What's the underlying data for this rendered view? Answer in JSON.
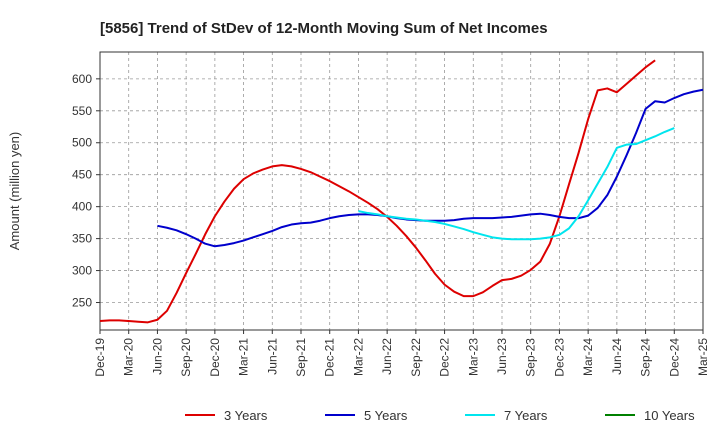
{
  "chart_data": {
    "type": "line",
    "title": "[5856]  Trend of StDev of 12-Month Moving Sum of Net Incomes",
    "xlabel": "",
    "ylabel": "Amount (million yen)",
    "ylim": [
      207,
      642
    ],
    "yticks": [
      250,
      300,
      350,
      400,
      450,
      500,
      550,
      600
    ],
    "x_tick_labels": [
      "Dec-19",
      "Mar-20",
      "Jun-20",
      "Sep-20",
      "Dec-20",
      "Mar-21",
      "Jun-21",
      "Sep-21",
      "Dec-21",
      "Mar-22",
      "Jun-22",
      "Sep-22",
      "Dec-22",
      "Mar-23",
      "Jun-23",
      "Sep-23",
      "Dec-23",
      "Mar-24",
      "Jun-24",
      "Sep-24",
      "Dec-24",
      "Mar-25"
    ],
    "grid": true,
    "legend_position": "bottom",
    "colors": {
      "3 Years": "#dd0000",
      "5 Years": "#0000cc",
      "7 Years": "#00e5ee",
      "10 Years": "#008000"
    },
    "series": [
      {
        "name": "3 Years",
        "start_index": 0,
        "values": [
          221,
          222,
          222,
          221,
          220,
          219,
          223,
          237,
          265,
          296,
          326,
          357,
          385,
          408,
          428,
          443,
          452,
          458,
          463,
          465,
          463,
          459,
          454,
          447,
          440,
          432,
          424,
          415,
          406,
          396,
          384,
          370,
          354,
          336,
          316,
          295,
          278,
          267,
          260,
          260,
          266,
          276,
          285,
          287,
          292,
          301,
          314,
          342,
          385,
          435,
          484,
          537,
          582,
          585,
          579,
          592,
          605,
          618,
          629
        ]
      },
      {
        "name": "5 Years",
        "start_index": 6,
        "values": [
          370,
          367,
          363,
          357,
          350,
          342,
          338,
          340,
          343,
          347,
          352,
          357,
          362,
          368,
          372,
          374,
          375,
          378,
          382,
          385,
          387,
          388,
          388,
          387,
          385,
          382,
          380,
          379,
          378,
          378,
          378,
          379,
          381,
          382,
          382,
          382,
          383,
          384,
          386,
          388,
          389,
          387,
          384,
          382,
          382,
          386,
          398,
          418,
          447,
          480,
          515,
          553,
          565,
          563,
          570,
          576,
          580,
          583
        ]
      },
      {
        "name": "7 Years",
        "start_index": 27,
        "values": [
          393,
          390,
          388,
          385,
          383,
          381,
          380,
          378,
          376,
          373,
          369,
          365,
          360,
          356,
          352,
          350,
          349,
          349,
          349,
          350,
          352,
          356,
          366,
          385,
          410,
          436,
          462,
          492,
          497,
          498,
          504,
          510,
          517,
          523
        ]
      },
      {
        "name": "10 Years",
        "start_index": 0,
        "values": []
      }
    ]
  }
}
